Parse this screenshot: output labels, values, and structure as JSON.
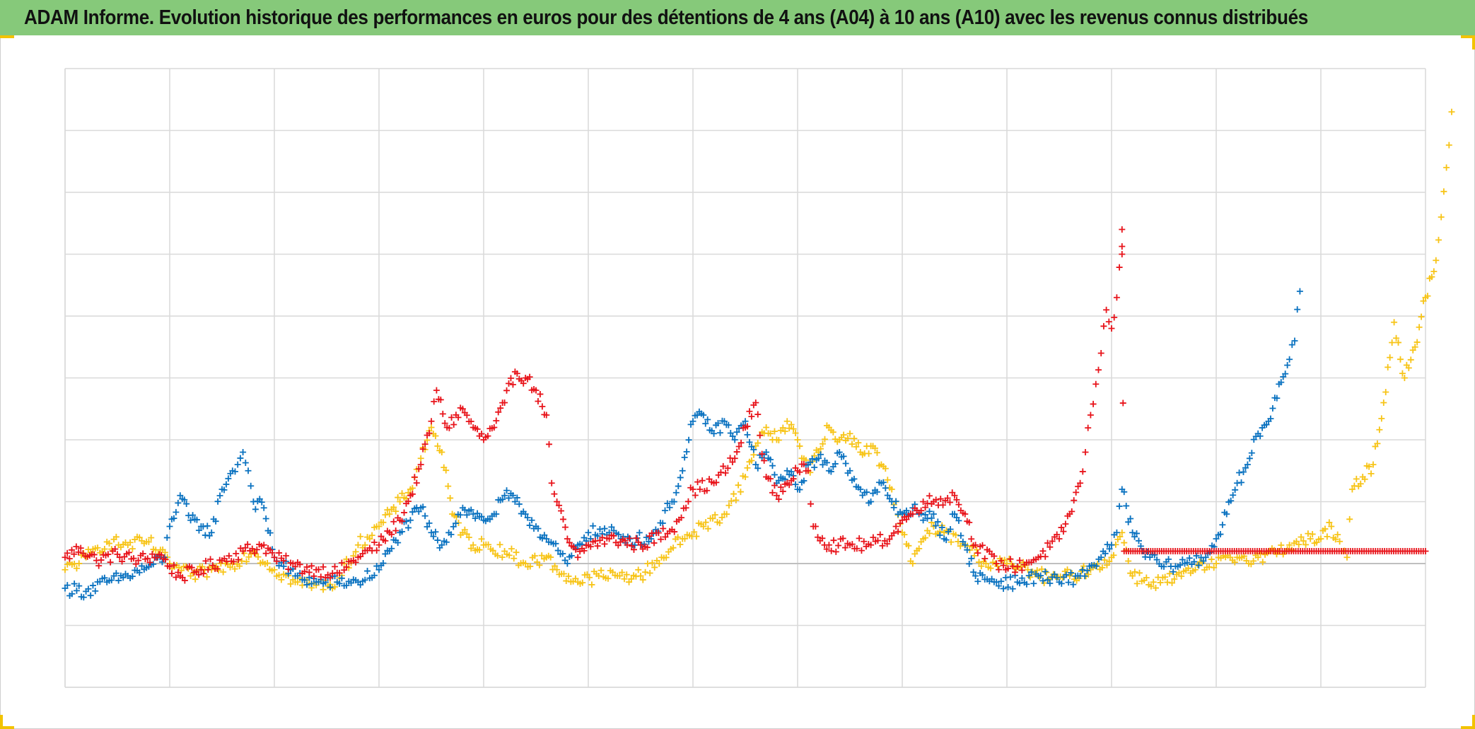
{
  "title": "ADAM Informe. Evolution historique des performances en euros pour des détentions de 4 ans (A04) à 10 ans (A10) avec les revenus connus distribués",
  "colors": {
    "title_bar": "#86c97a",
    "accent_corner": "#f2c300",
    "series_red": "#e8141b",
    "series_blue": "#0a72c0",
    "series_yellow": "#f7c417",
    "grid": "#d9d9d9",
    "zero_line": "#bfbfbf"
  },
  "chart_data": {
    "type": "scatter",
    "marker": "plus",
    "title": "ADAM Informe. Evolution historique des performances en euros pour des détentions de 4 ans (A04) à 10 ans (A10) avec les revenus connus distribués",
    "xlabel": "",
    "ylabel": "",
    "tick_labels_shown": false,
    "grid": true,
    "xlim": [
      0,
      13
    ],
    "ylim": [
      -2,
      8
    ],
    "zero_line": 0,
    "series": [
      {
        "color": "#e8141b",
        "points": [
          [
            0,
            0.1
          ],
          [
            0.15,
            0.25
          ],
          [
            0.3,
            0.05
          ],
          [
            0.5,
            0.15
          ],
          [
            0.7,
            0.05
          ],
          [
            0.9,
            0.15
          ],
          [
            1.0,
            -0.05
          ],
          [
            1.1,
            -0.2
          ],
          [
            1.3,
            -0.1
          ],
          [
            1.5,
            0.05
          ],
          [
            1.7,
            0.2
          ],
          [
            1.9,
            0.3
          ],
          [
            2.0,
            0.1
          ],
          [
            2.2,
            -0.05
          ],
          [
            2.4,
            -0.1
          ],
          [
            2.6,
            -0.15
          ],
          [
            2.8,
            0.1
          ],
          [
            3.0,
            0.3
          ],
          [
            3.1,
            0.5
          ],
          [
            3.2,
            0.7
          ],
          [
            3.3,
            1.1
          ],
          [
            3.4,
            1.6
          ],
          [
            3.5,
            2.3
          ],
          [
            3.55,
            2.8
          ],
          [
            3.65,
            2.2
          ],
          [
            3.8,
            2.5
          ],
          [
            3.9,
            2.2
          ],
          [
            4.0,
            2.0
          ],
          [
            4.1,
            2.2
          ],
          [
            4.2,
            2.6
          ],
          [
            4.3,
            3.1
          ],
          [
            4.4,
            3.0
          ],
          [
            4.5,
            2.8
          ],
          [
            4.6,
            2.4
          ],
          [
            4.65,
            1.3
          ],
          [
            4.7,
            1.0
          ],
          [
            4.8,
            0.4
          ],
          [
            4.9,
            0.1
          ],
          [
            5.0,
            0.3
          ],
          [
            5.2,
            0.4
          ],
          [
            5.5,
            0.3
          ],
          [
            5.8,
            0.55
          ],
          [
            6.0,
            1.2
          ],
          [
            6.2,
            1.3
          ],
          [
            6.4,
            1.7
          ],
          [
            6.5,
            2.2
          ],
          [
            6.6,
            2.6
          ],
          [
            6.7,
            1.4
          ],
          [
            6.8,
            1.1
          ],
          [
            6.9,
            1.3
          ],
          [
            7.0,
            1.5
          ],
          [
            7.1,
            1.5
          ],
          [
            7.15,
            0.6
          ],
          [
            7.3,
            0.3
          ],
          [
            7.5,
            0.3
          ],
          [
            7.7,
            0.3
          ],
          [
            7.9,
            0.45
          ],
          [
            8.0,
            0.7
          ],
          [
            8.1,
            0.8
          ],
          [
            8.2,
            1.0
          ],
          [
            8.3,
            1.0
          ],
          [
            8.5,
            1.1
          ],
          [
            8.6,
            0.8
          ],
          [
            8.7,
            0.3
          ],
          [
            8.9,
            0.0
          ],
          [
            9.1,
            -0.05
          ],
          [
            9.3,
            0.1
          ],
          [
            9.5,
            0.4
          ],
          [
            9.6,
            0.8
          ],
          [
            9.7,
            1.3
          ],
          [
            9.75,
            1.8
          ],
          [
            9.8,
            2.4
          ],
          [
            9.85,
            2.9
          ],
          [
            9.9,
            3.4
          ],
          [
            9.95,
            4.1
          ],
          [
            10.0,
            3.8
          ],
          [
            10.05,
            4.3
          ],
          [
            10.1,
            5.4
          ],
          [
            10.1,
            5.0
          ],
          [
            10.12,
            0.2
          ],
          [
            10.5,
            0.2
          ],
          [
            11.0,
            0.2
          ],
          [
            11.5,
            0.2
          ],
          [
            12.0,
            0.2
          ],
          [
            12.5,
            0.2
          ],
          [
            13.0,
            0.2
          ]
        ]
      },
      {
        "color": "#0a72c0",
        "points": [
          [
            0,
            -0.4
          ],
          [
            0.2,
            -0.45
          ],
          [
            0.4,
            -0.3
          ],
          [
            0.6,
            -0.2
          ],
          [
            0.8,
            -0.05
          ],
          [
            0.95,
            0.1
          ],
          [
            1.0,
            0.6
          ],
          [
            1.1,
            1.1
          ],
          [
            1.2,
            0.7
          ],
          [
            1.3,
            0.6
          ],
          [
            1.4,
            0.5
          ],
          [
            1.5,
            1.2
          ],
          [
            1.6,
            1.5
          ],
          [
            1.65,
            1.6
          ],
          [
            1.7,
            1.8
          ],
          [
            1.75,
            1.5
          ],
          [
            1.8,
            1.0
          ],
          [
            1.9,
            0.9
          ],
          [
            2.0,
            0.1
          ],
          [
            2.2,
            -0.2
          ],
          [
            2.4,
            -0.3
          ],
          [
            2.6,
            -0.3
          ],
          [
            2.8,
            -0.3
          ],
          [
            3.0,
            -0.1
          ],
          [
            3.1,
            0.2
          ],
          [
            3.2,
            0.5
          ],
          [
            3.3,
            0.7
          ],
          [
            3.4,
            0.9
          ],
          [
            3.5,
            0.5
          ],
          [
            3.6,
            0.3
          ],
          [
            3.8,
            0.9
          ],
          [
            3.9,
            0.8
          ],
          [
            4.0,
            0.7
          ],
          [
            4.1,
            0.8
          ],
          [
            4.2,
            1.1
          ],
          [
            4.3,
            1.0
          ],
          [
            4.4,
            0.8
          ],
          [
            4.5,
            0.6
          ],
          [
            4.6,
            0.4
          ],
          [
            4.8,
            0.0
          ],
          [
            4.9,
            0.3
          ],
          [
            5.0,
            0.5
          ],
          [
            5.2,
            0.5
          ],
          [
            5.4,
            0.4
          ],
          [
            5.6,
            0.4
          ],
          [
            5.8,
            1.0
          ],
          [
            5.9,
            1.5
          ],
          [
            6.0,
            2.3
          ],
          [
            6.1,
            2.4
          ],
          [
            6.2,
            2.1
          ],
          [
            6.3,
            2.3
          ],
          [
            6.4,
            2.0
          ],
          [
            6.5,
            2.3
          ],
          [
            6.6,
            1.6
          ],
          [
            6.7,
            1.8
          ],
          [
            6.8,
            1.3
          ],
          [
            6.9,
            1.5
          ],
          [
            7.0,
            1.2
          ],
          [
            7.1,
            1.6
          ],
          [
            7.2,
            1.7
          ],
          [
            7.3,
            1.5
          ],
          [
            7.4,
            1.8
          ],
          [
            7.5,
            1.5
          ],
          [
            7.6,
            1.2
          ],
          [
            7.7,
            1.0
          ],
          [
            7.8,
            1.3
          ],
          [
            7.9,
            1.0
          ],
          [
            8.0,
            0.8
          ],
          [
            8.1,
            0.9
          ],
          [
            8.2,
            0.7
          ],
          [
            8.3,
            0.8
          ],
          [
            8.4,
            0.4
          ],
          [
            8.5,
            0.8
          ],
          [
            8.6,
            0.3
          ],
          [
            8.7,
            -0.2
          ],
          [
            8.9,
            -0.3
          ],
          [
            9.1,
            -0.3
          ],
          [
            9.3,
            -0.2
          ],
          [
            9.5,
            -0.3
          ],
          [
            9.7,
            -0.2
          ],
          [
            9.9,
            0.1
          ],
          [
            10.0,
            0.3
          ],
          [
            10.05,
            0.5
          ],
          [
            10.1,
            1.2
          ],
          [
            10.2,
            0.5
          ],
          [
            10.3,
            0.2
          ],
          [
            10.5,
            -0.05
          ],
          [
            10.7,
            0.0
          ],
          [
            10.9,
            0.1
          ],
          [
            11.0,
            0.4
          ],
          [
            11.1,
            0.8
          ],
          [
            11.2,
            1.3
          ],
          [
            11.3,
            1.6
          ],
          [
            11.4,
            2.1
          ],
          [
            11.5,
            2.3
          ],
          [
            11.6,
            2.9
          ],
          [
            11.7,
            3.3
          ],
          [
            11.75,
            3.6
          ],
          [
            11.8,
            4.4
          ]
        ]
      },
      {
        "color": "#f7c417",
        "points": [
          [
            0,
            -0.1
          ],
          [
            0.2,
            0.1
          ],
          [
            0.4,
            0.35
          ],
          [
            0.6,
            0.3
          ],
          [
            0.8,
            0.35
          ],
          [
            1.0,
            0.0
          ],
          [
            1.2,
            -0.2
          ],
          [
            1.4,
            -0.1
          ],
          [
            1.6,
            0.0
          ],
          [
            1.8,
            0.2
          ],
          [
            2.0,
            -0.1
          ],
          [
            2.2,
            -0.3
          ],
          [
            2.4,
            -0.35
          ],
          [
            2.6,
            -0.3
          ],
          [
            2.8,
            0.3
          ],
          [
            3.0,
            0.6
          ],
          [
            3.1,
            0.8
          ],
          [
            3.2,
            1.0
          ],
          [
            3.3,
            1.2
          ],
          [
            3.4,
            1.7
          ],
          [
            3.5,
            2.2
          ],
          [
            3.6,
            1.8
          ],
          [
            3.7,
            0.8
          ],
          [
            3.8,
            0.5
          ],
          [
            3.9,
            0.3
          ],
          [
            4.0,
            0.3
          ],
          [
            4.2,
            0.2
          ],
          [
            4.4,
            0.0
          ],
          [
            4.6,
            0.1
          ],
          [
            4.7,
            -0.1
          ],
          [
            4.9,
            -0.3
          ],
          [
            5.1,
            -0.2
          ],
          [
            5.3,
            -0.2
          ],
          [
            5.5,
            -0.2
          ],
          [
            5.7,
            0.1
          ],
          [
            5.9,
            0.4
          ],
          [
            6.1,
            0.6
          ],
          [
            6.3,
            0.8
          ],
          [
            6.5,
            1.4
          ],
          [
            6.6,
            1.9
          ],
          [
            6.7,
            2.2
          ],
          [
            6.8,
            2.0
          ],
          [
            6.9,
            2.3
          ],
          [
            7.0,
            2.0
          ],
          [
            7.1,
            1.5
          ],
          [
            7.2,
            1.8
          ],
          [
            7.3,
            2.2
          ],
          [
            7.4,
            2.0
          ],
          [
            7.5,
            2.1
          ],
          [
            7.6,
            1.8
          ],
          [
            7.7,
            1.9
          ],
          [
            7.8,
            1.6
          ],
          [
            7.9,
            1.2
          ],
          [
            8.0,
            0.5
          ],
          [
            8.1,
            0.0
          ],
          [
            8.2,
            0.4
          ],
          [
            8.3,
            0.6
          ],
          [
            8.4,
            0.5
          ],
          [
            8.6,
            0.3
          ],
          [
            8.8,
            0.0
          ],
          [
            9.0,
            0.0
          ],
          [
            9.2,
            -0.1
          ],
          [
            9.4,
            -0.25
          ],
          [
            9.6,
            -0.2
          ],
          [
            9.8,
            -0.1
          ],
          [
            10.0,
            0.1
          ],
          [
            10.1,
            0.5
          ],
          [
            10.2,
            -0.2
          ],
          [
            10.4,
            -0.3
          ],
          [
            10.6,
            -0.25
          ],
          [
            10.8,
            -0.1
          ],
          [
            11.0,
            0.0
          ],
          [
            11.2,
            0.1
          ],
          [
            11.4,
            0.1
          ],
          [
            11.6,
            0.2
          ],
          [
            11.7,
            0.3
          ],
          [
            11.9,
            0.4
          ],
          [
            12.0,
            0.4
          ],
          [
            12.1,
            0.6
          ],
          [
            12.2,
            0.2
          ],
          [
            12.25,
            0.1
          ],
          [
            12.3,
            1.2
          ],
          [
            12.4,
            1.4
          ],
          [
            12.5,
            1.6
          ],
          [
            12.6,
            2.6
          ],
          [
            12.7,
            3.9
          ],
          [
            12.8,
            3.0
          ],
          [
            12.9,
            3.5
          ],
          [
            13.0,
            4.3
          ],
          [
            13.1,
            4.9
          ],
          [
            13.15,
            5.6
          ],
          [
            13.2,
            6.4
          ],
          [
            13.25,
            7.3
          ]
        ]
      }
    ]
  }
}
